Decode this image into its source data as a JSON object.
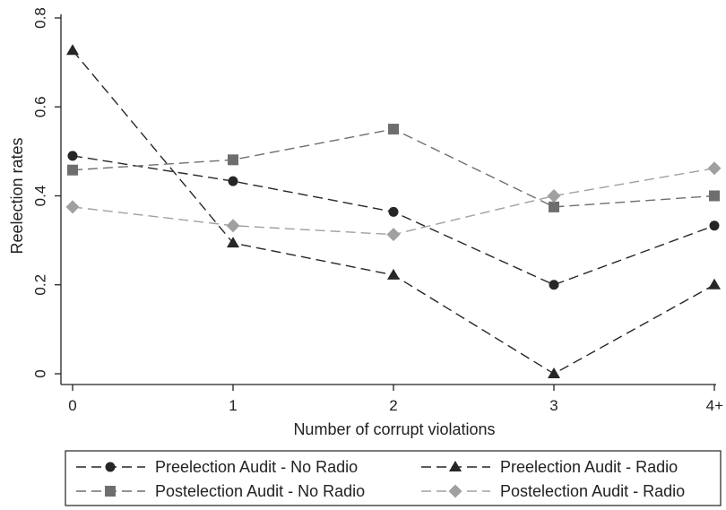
{
  "chart_data": {
    "type": "line",
    "title": "",
    "xlabel": "Number of corrupt violations",
    "ylabel": "Reelection rates",
    "categories": [
      "0",
      "1",
      "2",
      "3",
      "4+"
    ],
    "yticks": [
      "0",
      "0.2",
      "0.4",
      "0.6",
      "0.8"
    ],
    "ylim": [
      0,
      0.8
    ],
    "grid": false,
    "legend_position": "bottom",
    "series": [
      {
        "name": "Preelection Audit - No Radio",
        "marker": "circle",
        "color": "#262626",
        "values": [
          0.49,
          0.433,
          0.364,
          0.2,
          0.333
        ]
      },
      {
        "name": "Preelection Audit - Radio",
        "marker": "triangle",
        "color": "#262626",
        "values": [
          0.727,
          0.294,
          0.222,
          0.0,
          0.2
        ]
      },
      {
        "name": "Postelection Audit - No Radio",
        "marker": "square",
        "color": "#6e6e6e",
        "values": [
          0.458,
          0.481,
          0.55,
          0.375,
          0.4
        ]
      },
      {
        "name": "Postelection Audit - Radio",
        "marker": "diamond",
        "color": "#a0a0a0",
        "values": [
          0.375,
          0.333,
          0.313,
          0.4,
          0.462
        ]
      }
    ]
  }
}
